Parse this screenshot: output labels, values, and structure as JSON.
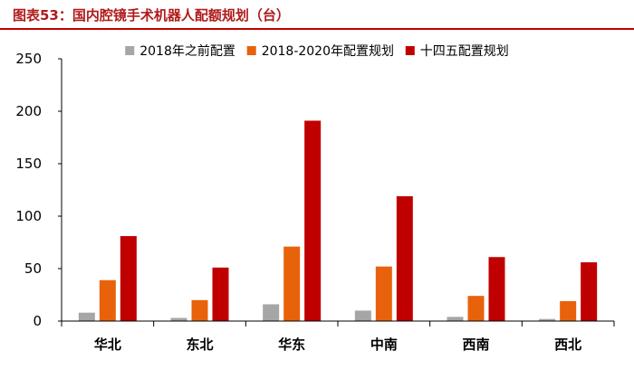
{
  "figure": {
    "title": "图表53：国内腔镜手术机器人配额规划（台）"
  },
  "chart_data": {
    "type": "bar",
    "categories": [
      "华北",
      "东北",
      "华东",
      "中南",
      "西南",
      "西北"
    ],
    "series": [
      {
        "name": "2018年之前配置",
        "color": "#a6a6a6",
        "values": [
          8,
          3,
          16,
          10,
          4,
          2
        ]
      },
      {
        "name": "2018-2020年配置规划",
        "color": "#e8620c",
        "values": [
          39,
          20,
          71,
          52,
          24,
          19
        ]
      },
      {
        "name": "十四五配置规划",
        "color": "#c00000",
        "values": [
          81,
          51,
          191,
          119,
          61,
          56
        ]
      }
    ],
    "yticks": [
      0,
      50,
      100,
      150,
      200,
      250
    ],
    "ylim": [
      0,
      250
    ],
    "legend_position": "top-center",
    "grid": false
  }
}
